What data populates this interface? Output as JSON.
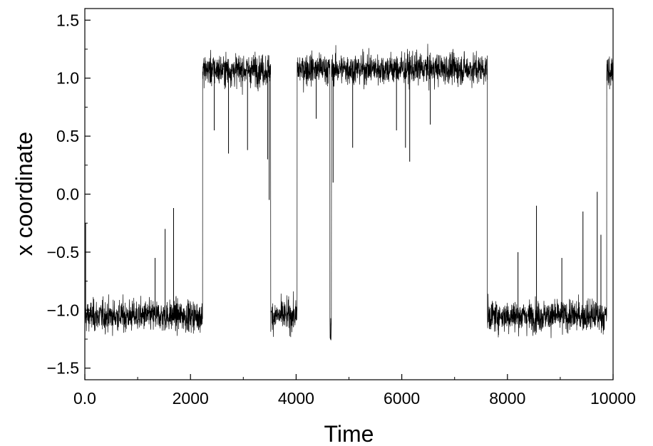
{
  "chart_data": {
    "type": "line",
    "xlabel": "Time",
    "ylabel": "x coordinate",
    "xlim": [
      0,
      10000
    ],
    "ylim": [
      -1.6,
      1.6
    ],
    "x_ticks": [
      0,
      2000,
      4000,
      6000,
      8000,
      10000
    ],
    "x_tick_labels": [
      "0.0",
      "2000",
      "4000",
      "6000",
      "8000",
      "10000"
    ],
    "y_ticks": [
      -1.5,
      -1.0,
      -0.5,
      0.0,
      0.5,
      1.0,
      1.5
    ],
    "y_tick_labels": [
      "−1.5",
      "−1.0",
      "−0.5",
      "0.0",
      "0.5",
      "1.0",
      "1.5"
    ],
    "grid": false,
    "line_color": "#000000",
    "series": [
      {
        "regimes": [
          {
            "start": 0,
            "end": 2230,
            "level": -1.05
          },
          {
            "start": 2230,
            "end": 3520,
            "level": 1.07
          },
          {
            "start": 3520,
            "end": 4020,
            "level": -1.05
          },
          {
            "start": 4020,
            "end": 4640,
            "level": 1.08
          },
          {
            "start": 4640,
            "end": 4670,
            "level": -1.2
          },
          {
            "start": 4670,
            "end": 7620,
            "level": 1.08
          },
          {
            "start": 7620,
            "end": 9880,
            "level": -1.05
          },
          {
            "start": 9880,
            "end": 10000,
            "level": 1.05
          }
        ],
        "spikes": [
          {
            "x": 15,
            "y": -0.25
          },
          {
            "x": 1330,
            "y": -0.55
          },
          {
            "x": 1520,
            "y": -0.3
          },
          {
            "x": 1680,
            "y": -0.12
          },
          {
            "x": 2450,
            "y": 0.55
          },
          {
            "x": 2720,
            "y": 0.35
          },
          {
            "x": 3080,
            "y": 0.38
          },
          {
            "x": 3460,
            "y": 0.3
          },
          {
            "x": 3490,
            "y": -0.05
          },
          {
            "x": 4380,
            "y": 0.65
          },
          {
            "x": 4700,
            "y": 0.1
          },
          {
            "x": 5070,
            "y": 0.4
          },
          {
            "x": 5900,
            "y": 0.55
          },
          {
            "x": 6070,
            "y": 0.4
          },
          {
            "x": 6150,
            "y": 0.28
          },
          {
            "x": 6540,
            "y": 0.6
          },
          {
            "x": 8200,
            "y": -0.5
          },
          {
            "x": 8550,
            "y": -0.1
          },
          {
            "x": 9030,
            "y": -0.55
          },
          {
            "x": 9430,
            "y": -0.15
          },
          {
            "x": 9700,
            "y": 0.02
          },
          {
            "x": 9770,
            "y": -0.35
          }
        ]
      }
    ]
  }
}
